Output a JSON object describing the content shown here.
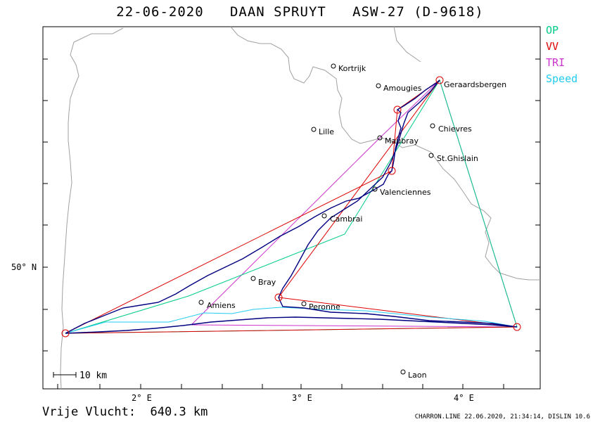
{
  "title": "22-06-2020   DAAN SPRUYT   ASW-27 (D-9618)",
  "legend": [
    {
      "label": "OP",
      "color": "#00cc88"
    },
    {
      "label": "VV",
      "color": "#dd0000"
    },
    {
      "label": "TRI",
      "color": "#cc33cc"
    },
    {
      "label": "Speed",
      "color": "#22ccee"
    }
  ],
  "axes": {
    "x_ticks": [
      "2° E",
      "3° E",
      "4° E"
    ],
    "y_ticks": [
      "50° N"
    ]
  },
  "scale_label": "10 km",
  "cities": [
    "Kortrijk",
    "Amougies",
    "Geraardsbergen",
    "Lille",
    "Chievres",
    "Maubray",
    "St.Ghislain",
    "Valenciennes",
    "Cambrai",
    "Bray",
    "Amiens",
    "Peronne",
    "Laon"
  ],
  "distance_text": "Vrije Vlucht:  640.3 km",
  "footer": "CHARRON.LINE 22.06.2020, 21:34:14, DISLIN 10.6",
  "colors": {
    "track": "#000080",
    "border": "#a0a0a0"
  }
}
